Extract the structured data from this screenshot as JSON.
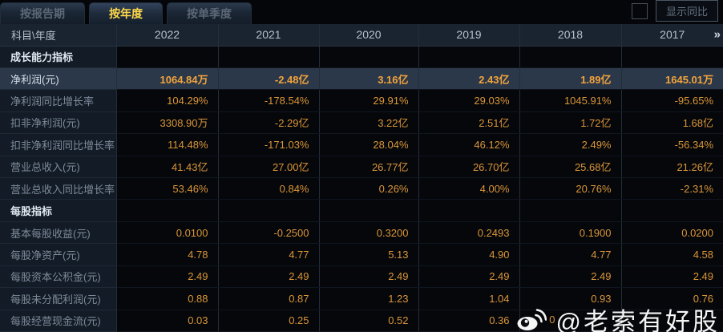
{
  "tabs": [
    {
      "label": "按报告期",
      "active": false
    },
    {
      "label": "按年度",
      "active": true
    },
    {
      "label": "按单季度",
      "active": false
    }
  ],
  "controls": {
    "show_yoy_label": "显示同比",
    "yoy_checkbox_checked": false
  },
  "table": {
    "corner_label": "科目\\年度",
    "years": [
      "2022",
      "2021",
      "2020",
      "2019",
      "2018",
      "2017"
    ],
    "more_icon": "»",
    "rows": [
      {
        "type": "section",
        "label": "成长能力指标"
      },
      {
        "type": "data",
        "label": "净利润(元)",
        "highlight": true,
        "values": [
          "1064.84万",
          "-2.48亿",
          "3.16亿",
          "2.43亿",
          "1.89亿",
          "1645.01万"
        ]
      },
      {
        "type": "data",
        "label": "净利润同比增长率",
        "values": [
          "104.29%",
          "-178.54%",
          "29.91%",
          "29.03%",
          "1045.91%",
          "-95.65%"
        ]
      },
      {
        "type": "data",
        "label": "扣非净利润(元)",
        "values": [
          "3308.90万",
          "-2.29亿",
          "3.22亿",
          "2.51亿",
          "1.72亿",
          "1.68亿"
        ]
      },
      {
        "type": "data",
        "label": "扣非净利润同比增长率",
        "values": [
          "114.48%",
          "-171.03%",
          "28.04%",
          "46.12%",
          "2.49%",
          "-56.34%"
        ]
      },
      {
        "type": "data",
        "label": "营业总收入(元)",
        "values": [
          "41.43亿",
          "27.00亿",
          "26.77亿",
          "26.70亿",
          "25.68亿",
          "21.26亿"
        ]
      },
      {
        "type": "data",
        "label": "营业总收入同比增长率",
        "values": [
          "53.46%",
          "0.84%",
          "0.26%",
          "4.00%",
          "20.76%",
          "-2.31%"
        ]
      },
      {
        "type": "section",
        "label": "每股指标"
      },
      {
        "type": "data",
        "label": "基本每股收益(元)",
        "values": [
          "0.0100",
          "-0.2500",
          "0.3200",
          "0.2493",
          "0.1900",
          "0.0200"
        ]
      },
      {
        "type": "data",
        "label": "每股净资产(元)",
        "values": [
          "4.78",
          "4.77",
          "5.13",
          "4.90",
          "4.77",
          "4.58"
        ]
      },
      {
        "type": "data",
        "label": "每股资本公积金(元)",
        "values": [
          "2.49",
          "2.49",
          "2.49",
          "2.49",
          "2.49",
          "2.49"
        ]
      },
      {
        "type": "data",
        "label": "每股未分配利润(元)",
        "values": [
          "0.88",
          "0.87",
          "1.23",
          "1.04",
          "0.93",
          "0.76"
        ]
      },
      {
        "type": "data",
        "label": "每股经营现金流(元)",
        "values": [
          "0.03",
          "0.25",
          "0.52",
          "0.36",
          "",
          ""
        ]
      }
    ]
  },
  "watermark": {
    "icon": "weibo-icon",
    "obscured_fragment": "0",
    "handle": "@老索有好股"
  },
  "colors": {
    "value_orange": "#DC9638",
    "highlight_row_bg": "#2B3849",
    "active_tab_text": "#FFD94A",
    "label_column_bg": "#121B26",
    "header_bg": "#1A2431"
  }
}
